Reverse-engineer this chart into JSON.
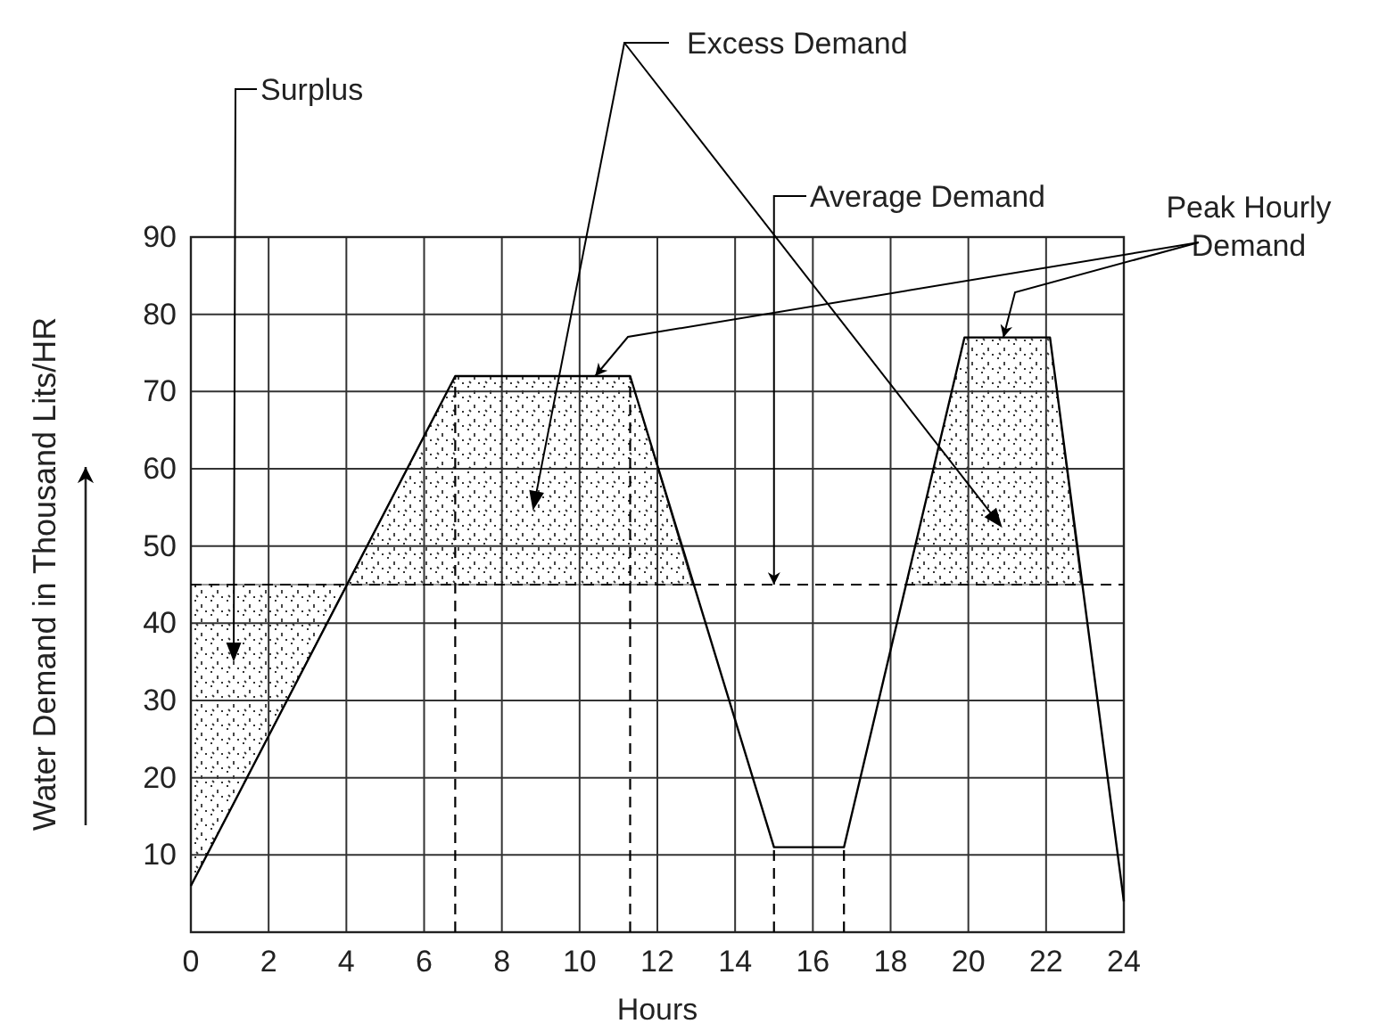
{
  "chart_data": {
    "type": "line",
    "xlabel": "Hours",
    "ylabel": "Water Demand in Thousand Lits/HR",
    "xlim": [
      0,
      24
    ],
    "xticks": [
      0,
      2,
      4,
      6,
      8,
      10,
      12,
      14,
      16,
      18,
      20,
      22,
      24
    ],
    "ylim": [
      0,
      90
    ],
    "yticks": [
      10,
      20,
      30,
      40,
      50,
      60,
      70,
      80,
      90
    ],
    "grid": true,
    "marker": "none",
    "line_style": "solid",
    "series": [
      {
        "color": "#000000",
        "x": [
          0,
          6.8,
          11.3,
          15,
          16.8,
          19.9,
          22.1,
          24
        ],
        "values": [
          6,
          72,
          72,
          11,
          11,
          77,
          77,
          4
        ]
      },
      {
        "type": "area",
        "color": "#333333",
        "x": [
          0,
          4
        ],
        "values": [
          6,
          45
        ]
      },
      {
        "type": "area",
        "color": "#333333",
        "x": [
          4,
          6.8,
          11.3,
          12.9
        ],
        "values": [
          45,
          72,
          72,
          45
        ]
      },
      {
        "type": "area",
        "color": "#333333",
        "x": [
          18.4,
          19.9,
          22.1,
          22.9
        ],
        "values": [
          45,
          77,
          77,
          45
        ]
      }
    ],
    "ref_lines": [
      {
        "axis": "y",
        "value": 45,
        "label": "Average Demand",
        "line_style": "dashed",
        "color": "#000000"
      },
      {
        "axis": "x",
        "value": 6.8,
        "line_style": "dashed",
        "color": "#000000"
      },
      {
        "axis": "x",
        "value": 11.3,
        "line_style": "dashed",
        "color": "#000000"
      },
      {
        "axis": "x",
        "value": 15,
        "line_style": "dashed",
        "color": "#000000"
      },
      {
        "axis": "x",
        "value": 16.8,
        "line_style": "dashed",
        "color": "#000000"
      }
    ],
    "annotations": [
      "Surplus",
      "Excess Demand",
      {
        "text": "Peak Hourly Demand",
        "x": 10.4,
        "y": 72
      }
    ]
  }
}
